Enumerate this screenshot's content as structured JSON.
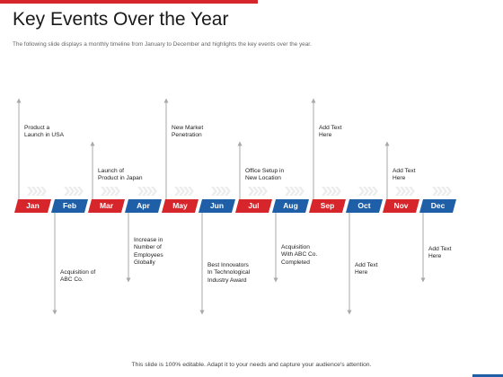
{
  "title": "Key Events Over the Year",
  "subtitle": "The following slide displays a monthly timeline from January to December and highlights the key events over the year.",
  "footer": "This slide is 100% editable. Adapt it to your needs and capture your audience's attention.",
  "colors": {
    "red": "#d6262c",
    "blue": "#1f5fa8",
    "arrow": "#a8a8a8",
    "chevron": "#ececec",
    "accent_bar": "#d6262c"
  },
  "months": [
    "Jan",
    "Feb",
    "Mar",
    "Apr",
    "May",
    "Jun",
    "Jul",
    "Aug",
    "Sep",
    "Oct",
    "Nov",
    "Dec"
  ],
  "events_above": [
    {
      "month": "Jan",
      "lines": [
        "Product a",
        "Launch in USA"
      ]
    },
    {
      "month": "Mar",
      "lines": [
        "Launch of",
        "Product in Japan"
      ]
    },
    {
      "month": "May",
      "lines": [
        "New Market",
        "Penetration"
      ]
    },
    {
      "month": "Jul",
      "lines": [
        "Office Setup in",
        "New Location"
      ]
    },
    {
      "month": "Sep",
      "lines": [
        "Add Text",
        "Here"
      ]
    },
    {
      "month": "Nov",
      "lines": [
        "Add Text",
        "Here"
      ]
    }
  ],
  "events_below": [
    {
      "month": "Feb",
      "lines": [
        "Acquisition of",
        "ABC Co."
      ]
    },
    {
      "month": "Apr",
      "lines": [
        "Increase in",
        "Number of",
        "Employees",
        "Globally"
      ]
    },
    {
      "month": "Jun",
      "lines": [
        "Best Innovators",
        "In Technological",
        "Industry Award"
      ]
    },
    {
      "month": "Aug",
      "lines": [
        "Acquisition",
        "With ABC Co.",
        "Completed"
      ]
    },
    {
      "month": "Oct",
      "lines": [
        "Add Text",
        "Here"
      ]
    },
    {
      "month": "Dec",
      "lines": [
        "Add Text",
        "Here"
      ]
    }
  ]
}
